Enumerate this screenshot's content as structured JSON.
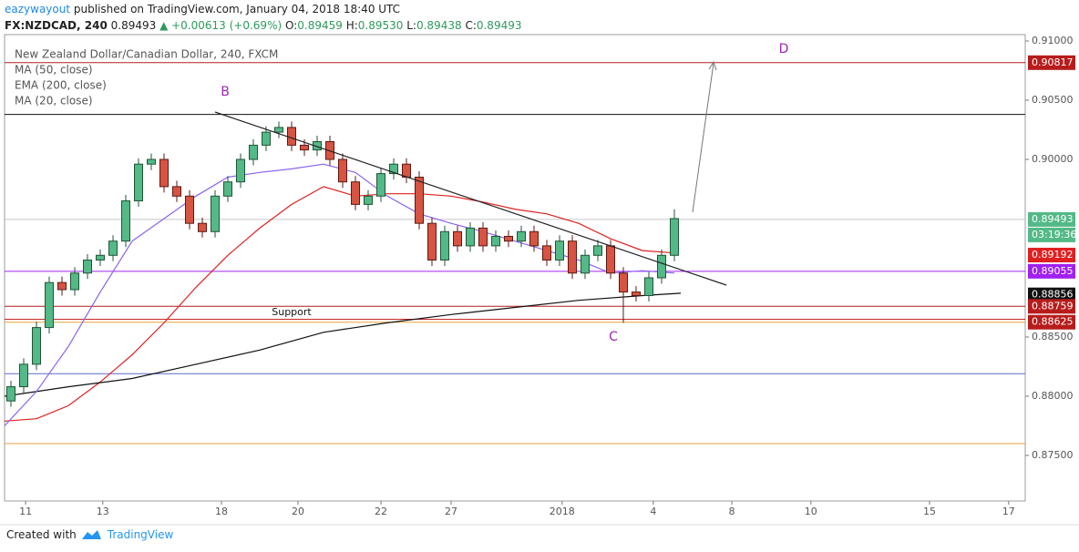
{
  "chart_data": {
    "type": "candlestick",
    "header": {
      "author": "eazywayout",
      "published": "published on TradingView.com, January 04, 2018 18:40 UTC",
      "symbol": "FX:NZDCAD, 240",
      "last": "0.89493",
      "change": "▲ +0.00613 (+0.69%)",
      "o_label": "O:",
      "o": "0.89459",
      "h_label": "H:",
      "h": "0.89530",
      "l_label": "L:",
      "l": "0.89438",
      "c_label": "C:",
      "c": "0.89493"
    },
    "title": "New Zealand Dollar/Canadian Dollar, 240, FXCM",
    "annotations": {
      "b": "B",
      "c": "C",
      "d": "D",
      "support": "Support"
    },
    "footer": {
      "created": "Created with",
      "brand": "TradingView"
    },
    "candles": {
      "x": [
        1,
        3,
        5,
        7,
        9,
        11,
        13,
        15,
        17,
        19,
        21,
        23,
        25,
        27,
        29,
        31,
        33,
        35,
        37,
        39,
        41,
        43,
        45,
        47,
        49,
        51,
        53,
        55,
        57,
        59,
        61,
        63,
        65,
        67,
        69,
        71,
        73,
        75,
        77,
        79,
        81,
        83,
        85,
        87,
        89,
        91,
        93,
        95,
        97,
        99,
        101,
        103,
        105
      ],
      "open": [
        0.8796,
        0.8808,
        0.8827,
        0.8858,
        0.8896,
        0.889,
        0.8904,
        0.8915,
        0.8919,
        0.8931,
        0.8965,
        0.8996,
        0.9,
        0.8977,
        0.8969,
        0.8946,
        0.8939,
        0.8969,
        0.8981,
        0.9,
        0.9012,
        0.9023,
        0.9027,
        0.9012,
        0.9008,
        0.9015,
        0.9,
        0.8981,
        0.8962,
        0.8969,
        0.8988,
        0.8996,
        0.8985,
        0.8946,
        0.8915,
        0.8939,
        0.8927,
        0.8942,
        0.8927,
        0.8935,
        0.8931,
        0.8939,
        0.8927,
        0.8915,
        0.8931,
        0.8904,
        0.8919,
        0.8927,
        0.8904,
        0.8888,
        0.8885,
        0.89,
        0.8919
      ],
      "high": [
        0.8813,
        0.8832,
        0.8863,
        0.8901,
        0.8901,
        0.8909,
        0.892,
        0.8924,
        0.8936,
        0.897,
        0.9001,
        0.9005,
        0.9005,
        0.8982,
        0.8974,
        0.8951,
        0.8974,
        0.8986,
        0.9005,
        0.9017,
        0.9028,
        0.9032,
        0.9032,
        0.9017,
        0.902,
        0.902,
        0.9005,
        0.8986,
        0.8974,
        0.8993,
        0.9001,
        0.9001,
        0.899,
        0.8951,
        0.8944,
        0.8944,
        0.8947,
        0.8947,
        0.894,
        0.894,
        0.8944,
        0.8944,
        0.8932,
        0.8936,
        0.8936,
        0.8924,
        0.8932,
        0.8932,
        0.8909,
        0.8893,
        0.8905,
        0.8924,
        0.8958
      ],
      "low": [
        0.8791,
        0.8803,
        0.8822,
        0.8853,
        0.8885,
        0.8885,
        0.8899,
        0.891,
        0.8914,
        0.8926,
        0.896,
        0.8991,
        0.8972,
        0.8964,
        0.8941,
        0.8934,
        0.8934,
        0.8964,
        0.8976,
        0.8995,
        0.9007,
        0.9018,
        0.9007,
        0.9003,
        0.9003,
        0.8995,
        0.8976,
        0.8957,
        0.8957,
        0.8964,
        0.8983,
        0.898,
        0.8941,
        0.891,
        0.891,
        0.8922,
        0.8922,
        0.8922,
        0.8922,
        0.8926,
        0.8926,
        0.8922,
        0.891,
        0.891,
        0.8899,
        0.8899,
        0.8914,
        0.8899,
        0.8862,
        0.888,
        0.888,
        0.8895,
        0.8914
      ],
      "close": [
        0.8808,
        0.8827,
        0.8858,
        0.8896,
        0.889,
        0.8904,
        0.8915,
        0.8919,
        0.8931,
        0.8965,
        0.8996,
        0.9,
        0.8977,
        0.8969,
        0.8946,
        0.8939,
        0.8969,
        0.8981,
        0.9,
        0.9012,
        0.9023,
        0.9027,
        0.9012,
        0.9008,
        0.9015,
        0.9,
        0.8981,
        0.8962,
        0.8969,
        0.8988,
        0.8996,
        0.8985,
        0.8946,
        0.8915,
        0.8939,
        0.8927,
        0.8942,
        0.8927,
        0.8935,
        0.8931,
        0.8939,
        0.8927,
        0.8915,
        0.8931,
        0.8904,
        0.8919,
        0.8927,
        0.8904,
        0.8888,
        0.8885,
        0.89,
        0.8919,
        0.895
      ],
      "up_color": "#53b987",
      "down_color": "#d75442",
      "up_border": "#225437",
      "down_border": "#5b1a13"
    },
    "series": [
      {
        "name": "MA (50, close)",
        "color": "#e02020",
        "x": [
          0,
          5,
          10,
          15,
          20,
          25,
          30,
          35,
          40,
          45,
          50,
          55,
          60,
          65,
          70,
          75,
          80,
          85,
          90,
          95,
          100,
          105
        ],
        "values": [
          0.8779,
          0.8781,
          0.8792,
          0.8812,
          0.8835,
          0.8862,
          0.8892,
          0.8919,
          0.8942,
          0.8962,
          0.8977,
          0.8969,
          0.8971,
          0.8971,
          0.8969,
          0.8964,
          0.8958,
          0.8954,
          0.8946,
          0.8933,
          0.8923,
          0.8921
        ]
      },
      {
        "name": "EMA (200, close)",
        "color": "#111111",
        "x": [
          0,
          10,
          20,
          30,
          40,
          50,
          60,
          70,
          80,
          90,
          100,
          106
        ],
        "values": [
          0.88,
          0.8808,
          0.8815,
          0.8827,
          0.8839,
          0.8854,
          0.8862,
          0.8869,
          0.8875,
          0.8881,
          0.8885,
          0.8887
        ]
      },
      {
        "name": "MA (20, close)",
        "color": "#8a63f0",
        "x": [
          0,
          5,
          10,
          15,
          20,
          25,
          30,
          35,
          40,
          45,
          50,
          55,
          60,
          65,
          70,
          75,
          80,
          85,
          90,
          95,
          100,
          105
        ],
        "values": [
          0.8775,
          0.8804,
          0.8842,
          0.8888,
          0.8931,
          0.895,
          0.8969,
          0.8985,
          0.8989,
          0.8992,
          0.8996,
          0.8989,
          0.8969,
          0.8954,
          0.8946,
          0.8939,
          0.8931,
          0.8923,
          0.8915,
          0.8904,
          0.8906,
          0.8904
        ]
      }
    ],
    "labeled_levels": [
      {
        "value": 0.90817,
        "color": "#b71c1c",
        "line": true
      },
      {
        "value": 0.89493,
        "color": "#53b987",
        "line": true,
        "line_color": "#c8c8c8",
        "countdown": "03:19:36"
      },
      {
        "value": 0.89192,
        "color": "#e02020",
        "line": false
      },
      {
        "value": 0.89055,
        "color": "#a020f0",
        "line": true
      },
      {
        "value": 0.88856,
        "color": "#111111",
        "line": false
      },
      {
        "value": 0.88759,
        "color": "#b71c1c",
        "line": true
      },
      {
        "value": 0.88625,
        "color": "#b71c1c",
        "line": true,
        "line_color": "#e6a23c"
      }
    ],
    "lines": [
      {
        "value": 0.9038,
        "color": "#111111"
      },
      {
        "value": 0.8865,
        "color": "#c62828"
      },
      {
        "value": 0.8819,
        "color": "#5c6bc0"
      },
      {
        "value": 0.876,
        "color": "#e6a23c"
      }
    ],
    "xlim": [
      0,
      160
    ],
    "ylim": [
      0.87115,
      0.91054
    ],
    "yticks": [
      {
        "value": 0.91,
        "label": "0.91000"
      },
      {
        "value": 0.905,
        "label": "0.90500"
      },
      {
        "value": 0.9,
        "label": "0.90000"
      },
      {
        "value": 0.885,
        "label": "0.88500"
      },
      {
        "value": 0.88,
        "label": "0.88000"
      },
      {
        "value": 0.875,
        "label": "0.87500"
      }
    ],
    "xticks": [
      {
        "value": 3.3,
        "label": "11"
      },
      {
        "value": 15.4,
        "label": "13"
      },
      {
        "value": 34,
        "label": "18"
      },
      {
        "value": 46,
        "label": "20"
      },
      {
        "value": 59,
        "label": "22"
      },
      {
        "value": 70,
        "label": "27"
      },
      {
        "value": 87.4,
        "label": "2018"
      },
      {
        "value": 101.7,
        "label": "4"
      },
      {
        "value": 114,
        "label": "8"
      },
      {
        "value": 126.4,
        "label": "10"
      },
      {
        "value": 145,
        "label": "15"
      },
      {
        "value": 157.4,
        "label": "17"
      }
    ]
  }
}
